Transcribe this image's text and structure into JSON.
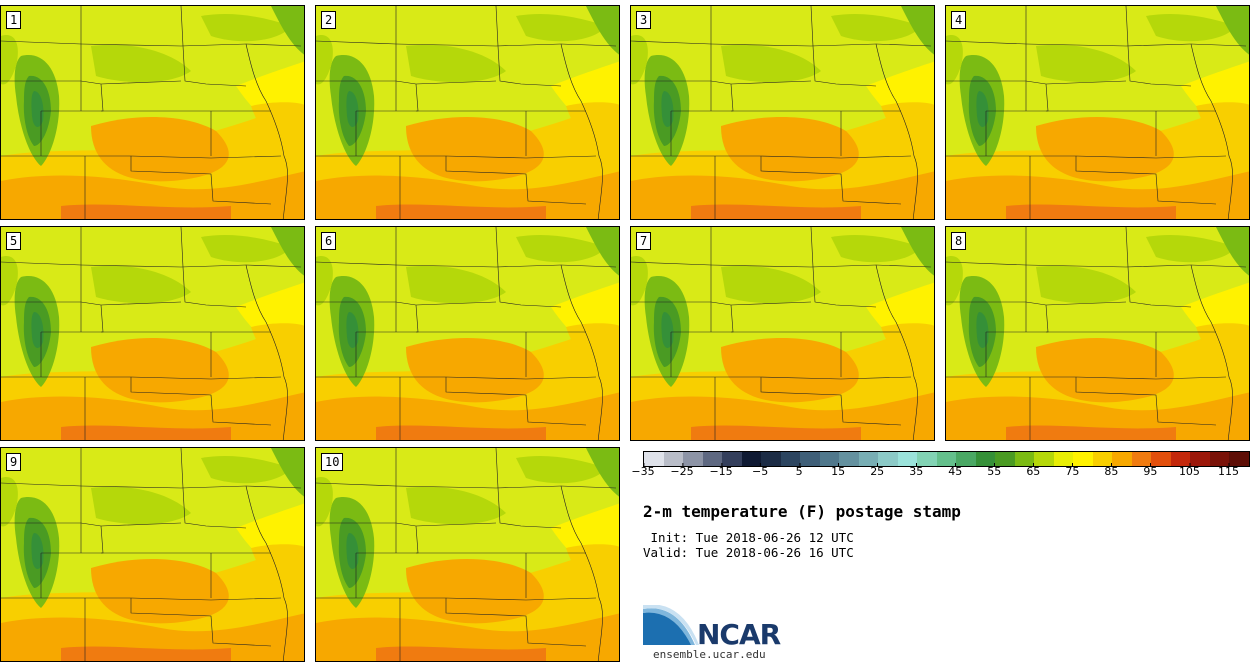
{
  "panels": [
    {
      "label": "1"
    },
    {
      "label": "2"
    },
    {
      "label": "3"
    },
    {
      "label": "4"
    },
    {
      "label": "5"
    },
    {
      "label": "6"
    },
    {
      "label": "7"
    },
    {
      "label": "8"
    },
    {
      "label": "9"
    },
    {
      "label": "10"
    }
  ],
  "colorbar": {
    "colors": [
      "#dfe2ea",
      "#b9bdc8",
      "#8d94a6",
      "#5e6881",
      "#343f5c",
      "#0f1a33",
      "#1c2c45",
      "#2c4560",
      "#3f5f78",
      "#50788c",
      "#64919f",
      "#78aeb4",
      "#8ccac7",
      "#9be3db",
      "#82d3b4",
      "#64c08c",
      "#4aa864",
      "#359038",
      "#4a9b23",
      "#7bbb13",
      "#b5d80a",
      "#e8ee05",
      "#fff200",
      "#f8cf00",
      "#f7a800",
      "#f07b10",
      "#e24f0c",
      "#c4280b",
      "#9c180a",
      "#7a1208",
      "#5e0e06"
    ],
    "ticks": [
      "−35",
      "−25",
      "−15",
      "−5",
      "5",
      "15",
      "25",
      "35",
      "45",
      "55",
      "65",
      "75",
      "85",
      "95",
      "105",
      "115"
    ]
  },
  "title": "2-m temperature (F) postage stamp",
  "init_line": " Init: Tue 2018-06-26 12 UTC",
  "valid_line": "Valid: Tue 2018-06-26 16 UTC",
  "logo": {
    "text": "NCAR",
    "url": "ensemble.ucar.edu",
    "color": "#1a3a6b"
  }
}
